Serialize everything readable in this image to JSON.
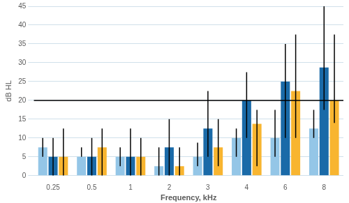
{
  "chart_data": {
    "type": "bar",
    "x_label": "Frequency, kHz",
    "y_label": "dB HL",
    "categories": [
      "0.25",
      "0.5",
      "1",
      "2",
      "3",
      "4",
      "6",
      "8"
    ],
    "series": [
      {
        "color": "#94c6e7",
        "values": [
          7.5,
          5,
          5,
          2.5,
          5,
          10,
          10,
          12.5
        ],
        "error_low": [
          5,
          5,
          2.5,
          0,
          2.5,
          5,
          5,
          10
        ],
        "error_high": [
          10,
          7.5,
          7.5,
          7.5,
          8.75,
          12.5,
          17.5,
          17.5
        ]
      },
      {
        "color": "#1a6aa8",
        "values": [
          5,
          5,
          5,
          7.5,
          12.5,
          20,
          25,
          28.75
        ],
        "error_low": [
          0,
          0,
          0,
          0,
          5,
          10,
          10,
          17.5
        ],
        "error_high": [
          10,
          10,
          12.5,
          15,
          22.5,
          27.5,
          35,
          45
        ]
      },
      {
        "color": "#f8b530",
        "values": [
          5,
          7.5,
          5,
          2.5,
          7.5,
          13.75,
          22.5,
          20
        ],
        "error_low": [
          0,
          0,
          0,
          0,
          2.5,
          2.5,
          10,
          14
        ],
        "error_high": [
          12.5,
          12.5,
          10,
          7.5,
          15,
          17.5,
          37.5,
          37.5
        ]
      }
    ],
    "reference_line": 20,
    "ylim": [
      0,
      45
    ],
    "yticks": [
      0,
      5,
      10,
      15,
      20,
      25,
      30,
      35,
      40,
      45
    ],
    "grid": true
  }
}
